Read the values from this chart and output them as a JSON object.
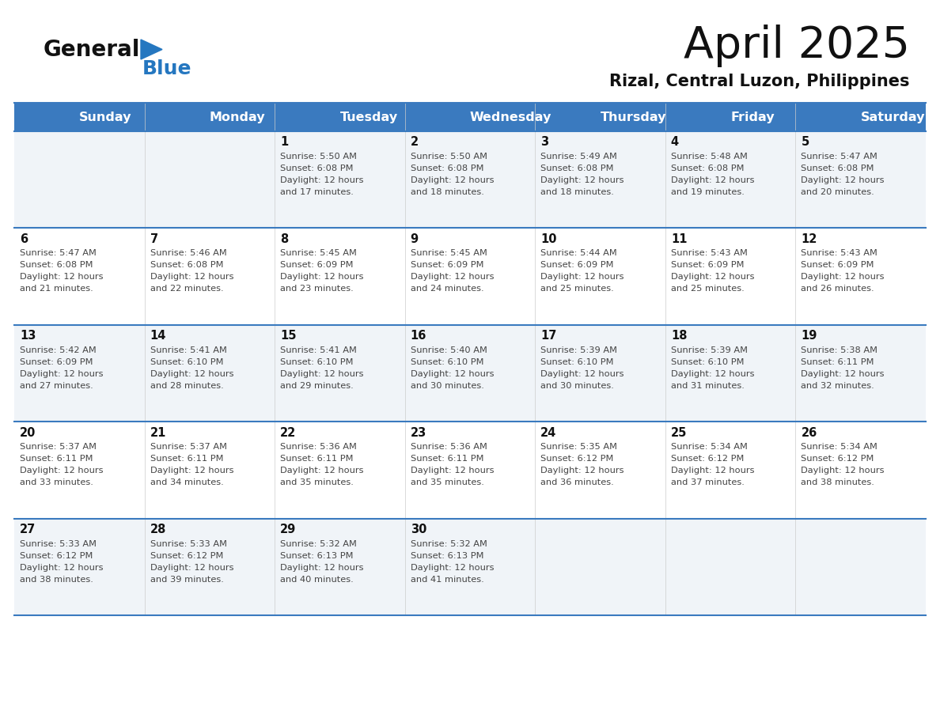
{
  "title": "April 2025",
  "subtitle": "Rizal, Central Luzon, Philippines",
  "header_bg": "#3a7abf",
  "header_text_color": "#ffffff",
  "weekdays": [
    "Sunday",
    "Monday",
    "Tuesday",
    "Wednesday",
    "Thursday",
    "Friday",
    "Saturday"
  ],
  "cell_bg_light": "#f0f4f8",
  "cell_bg_white": "#ffffff",
  "border_color": "#3a7abf",
  "sep_line_color": "#3a7abf",
  "text_color": "#444444",
  "day_num_color": "#111111",
  "logo_general_color": "#111111",
  "logo_blue_color": "#2577c0",
  "calendar_data": [
    [
      null,
      null,
      {
        "day": 1,
        "sunrise": "5:50 AM",
        "sunset": "6:08 PM",
        "daylight": "12 hours and 17 minutes."
      },
      {
        "day": 2,
        "sunrise": "5:50 AM",
        "sunset": "6:08 PM",
        "daylight": "12 hours and 18 minutes."
      },
      {
        "day": 3,
        "sunrise": "5:49 AM",
        "sunset": "6:08 PM",
        "daylight": "12 hours and 18 minutes."
      },
      {
        "day": 4,
        "sunrise": "5:48 AM",
        "sunset": "6:08 PM",
        "daylight": "12 hours and 19 minutes."
      },
      {
        "day": 5,
        "sunrise": "5:47 AM",
        "sunset": "6:08 PM",
        "daylight": "12 hours and 20 minutes."
      }
    ],
    [
      {
        "day": 6,
        "sunrise": "5:47 AM",
        "sunset": "6:08 PM",
        "daylight": "12 hours and 21 minutes."
      },
      {
        "day": 7,
        "sunrise": "5:46 AM",
        "sunset": "6:08 PM",
        "daylight": "12 hours and 22 minutes."
      },
      {
        "day": 8,
        "sunrise": "5:45 AM",
        "sunset": "6:09 PM",
        "daylight": "12 hours and 23 minutes."
      },
      {
        "day": 9,
        "sunrise": "5:45 AM",
        "sunset": "6:09 PM",
        "daylight": "12 hours and 24 minutes."
      },
      {
        "day": 10,
        "sunrise": "5:44 AM",
        "sunset": "6:09 PM",
        "daylight": "12 hours and 25 minutes."
      },
      {
        "day": 11,
        "sunrise": "5:43 AM",
        "sunset": "6:09 PM",
        "daylight": "12 hours and 25 minutes."
      },
      {
        "day": 12,
        "sunrise": "5:43 AM",
        "sunset": "6:09 PM",
        "daylight": "12 hours and 26 minutes."
      }
    ],
    [
      {
        "day": 13,
        "sunrise": "5:42 AM",
        "sunset": "6:09 PM",
        "daylight": "12 hours and 27 minutes."
      },
      {
        "day": 14,
        "sunrise": "5:41 AM",
        "sunset": "6:10 PM",
        "daylight": "12 hours and 28 minutes."
      },
      {
        "day": 15,
        "sunrise": "5:41 AM",
        "sunset": "6:10 PM",
        "daylight": "12 hours and 29 minutes."
      },
      {
        "day": 16,
        "sunrise": "5:40 AM",
        "sunset": "6:10 PM",
        "daylight": "12 hours and 30 minutes."
      },
      {
        "day": 17,
        "sunrise": "5:39 AM",
        "sunset": "6:10 PM",
        "daylight": "12 hours and 30 minutes."
      },
      {
        "day": 18,
        "sunrise": "5:39 AM",
        "sunset": "6:10 PM",
        "daylight": "12 hours and 31 minutes."
      },
      {
        "day": 19,
        "sunrise": "5:38 AM",
        "sunset": "6:11 PM",
        "daylight": "12 hours and 32 minutes."
      }
    ],
    [
      {
        "day": 20,
        "sunrise": "5:37 AM",
        "sunset": "6:11 PM",
        "daylight": "12 hours and 33 minutes."
      },
      {
        "day": 21,
        "sunrise": "5:37 AM",
        "sunset": "6:11 PM",
        "daylight": "12 hours and 34 minutes."
      },
      {
        "day": 22,
        "sunrise": "5:36 AM",
        "sunset": "6:11 PM",
        "daylight": "12 hours and 35 minutes."
      },
      {
        "day": 23,
        "sunrise": "5:36 AM",
        "sunset": "6:11 PM",
        "daylight": "12 hours and 35 minutes."
      },
      {
        "day": 24,
        "sunrise": "5:35 AM",
        "sunset": "6:12 PM",
        "daylight": "12 hours and 36 minutes."
      },
      {
        "day": 25,
        "sunrise": "5:34 AM",
        "sunset": "6:12 PM",
        "daylight": "12 hours and 37 minutes."
      },
      {
        "day": 26,
        "sunrise": "5:34 AM",
        "sunset": "6:12 PM",
        "daylight": "12 hours and 38 minutes."
      }
    ],
    [
      {
        "day": 27,
        "sunrise": "5:33 AM",
        "sunset": "6:12 PM",
        "daylight": "12 hours and 38 minutes."
      },
      {
        "day": 28,
        "sunrise": "5:33 AM",
        "sunset": "6:12 PM",
        "daylight": "12 hours and 39 minutes."
      },
      {
        "day": 29,
        "sunrise": "5:32 AM",
        "sunset": "6:13 PM",
        "daylight": "12 hours and 40 minutes."
      },
      {
        "day": 30,
        "sunrise": "5:32 AM",
        "sunset": "6:13 PM",
        "daylight": "12 hours and 41 minutes."
      },
      null,
      null,
      null
    ]
  ]
}
